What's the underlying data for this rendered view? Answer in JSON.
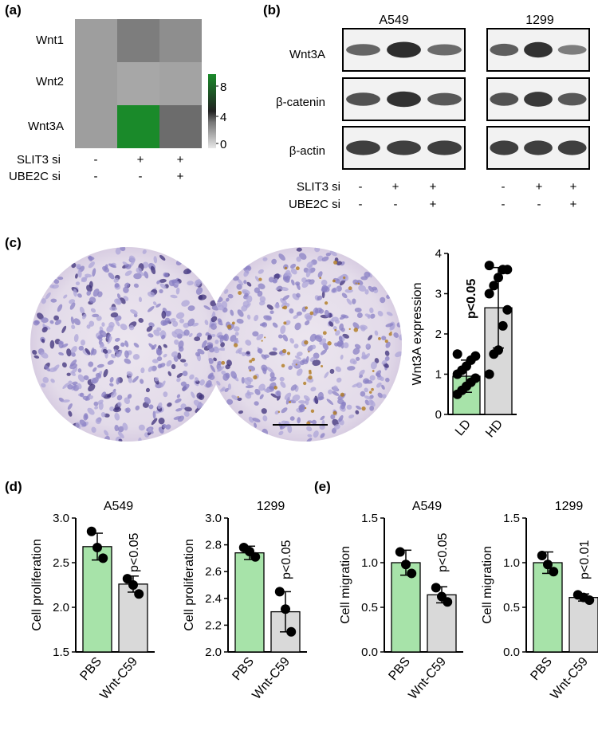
{
  "panel_labels": [
    "(a)",
    "(b)",
    "(c)",
    "(d)",
    "(e)"
  ],
  "colors": {
    "bar_green": "#a7e3a9",
    "bar_gray": "#d9d9d9",
    "heat_high": "#1a8a2a",
    "point": "#000000",
    "blot_band": "#222222"
  },
  "panel_a": {
    "rows": [
      "Wnt1",
      "Wnt2",
      "Wnt3A"
    ],
    "scale_ticks": [
      "8",
      "4",
      "0"
    ],
    "cond_rows": [
      {
        "label": "SLIT3 si",
        "signs": [
          "-",
          "+",
          "+"
        ]
      },
      {
        "label": "UBE2C si",
        "signs": [
          "-",
          "-",
          "+"
        ]
      }
    ]
  },
  "panel_b": {
    "cells": [
      "A549",
      "1299"
    ],
    "blots": [
      "Wnt3A",
      "β-catenin",
      "β-actin"
    ],
    "cond_rows": [
      {
        "label": "SLIT3 si",
        "signs": [
          "-",
          "+",
          "+",
          "-",
          "+",
          "+"
        ]
      },
      {
        "label": "UBE2C si",
        "signs": [
          "-",
          "-",
          "+",
          "-",
          "-",
          "+"
        ]
      }
    ]
  },
  "panel_c": {
    "ylabel": "Wnt3A expression",
    "pvalue": "p<0.05",
    "yticks": [
      "0",
      "1",
      "2",
      "3",
      "4"
    ]
  },
  "chart_data": [
    {
      "type": "heatmap",
      "panel": "a",
      "rows": [
        "Wnt1",
        "Wnt2",
        "Wnt3A"
      ],
      "columns": [
        "SLIT3 si - / UBE2C si -",
        "SLIT3 si + / UBE2C si -",
        "SLIT3 si + / UBE2C si +"
      ],
      "values": [
        [
          1,
          3,
          2
        ],
        [
          1,
          0.5,
          0.7
        ],
        [
          1,
          9,
          4
        ]
      ],
      "scale": [
        0,
        9
      ],
      "scale_ticks": [
        0,
        4,
        8
      ]
    },
    {
      "type": "bar",
      "panel": "c",
      "categories": [
        "LD",
        "HD"
      ],
      "values": [
        0.95,
        2.65
      ],
      "errors": [
        0.4,
        1.0
      ],
      "points": [
        [
          0.5,
          0.6,
          0.7,
          0.8,
          0.9,
          1.0,
          1.1,
          1.2,
          1.35,
          1.45,
          1.5
        ],
        [
          1.0,
          1.5,
          1.6,
          2.2,
          2.6,
          3.0,
          3.2,
          3.4,
          3.6,
          3.6,
          3.7
        ]
      ],
      "ylabel": "Wnt3A expression",
      "ylim": [
        0,
        4
      ],
      "annotation": "p<0.05"
    },
    {
      "type": "bar",
      "panel": "d",
      "title": "A549",
      "categories": [
        "PBS",
        "Wnt-C59"
      ],
      "values": [
        2.68,
        2.26
      ],
      "errors": [
        0.15,
        0.09
      ],
      "points": [
        [
          2.85,
          2.67,
          2.55
        ],
        [
          2.32,
          2.25,
          2.15
        ]
      ],
      "ylabel": "Cell proliferation",
      "ylim": [
        1.5,
        3.0
      ],
      "yticks": [
        "1.5",
        "2.0",
        "2.5",
        "3.0"
      ],
      "annotation": "p<0.05"
    },
    {
      "type": "bar",
      "panel": "d",
      "title": "1299",
      "categories": [
        "PBS",
        "Wnt-C59"
      ],
      "values": [
        2.74,
        2.3
      ],
      "errors": [
        0.05,
        0.15
      ],
      "points": [
        [
          2.78,
          2.75,
          2.71
        ],
        [
          2.45,
          2.32,
          2.15
        ]
      ],
      "ylabel": "Cell proliferation",
      "ylim": [
        2.0,
        3.0
      ],
      "yticks": [
        "2.0",
        "2.2",
        "2.4",
        "2.6",
        "2.8",
        "3.0"
      ],
      "annotation": "p<0.05"
    },
    {
      "type": "bar",
      "panel": "e",
      "title": "A549",
      "categories": [
        "PBS",
        "Wnt-C59"
      ],
      "values": [
        1.0,
        0.64
      ],
      "errors": [
        0.14,
        0.09
      ],
      "points": [
        [
          1.12,
          0.98,
          0.88
        ],
        [
          0.72,
          0.62,
          0.56
        ]
      ],
      "ylabel": "Cell migration",
      "ylim": [
        0.0,
        1.5
      ],
      "yticks": [
        "0.0",
        "0.5",
        "1.0",
        "1.5"
      ],
      "annotation": "p<0.05"
    },
    {
      "type": "bar",
      "panel": "e",
      "title": "1299",
      "categories": [
        "PBS",
        "Wnt-C59"
      ],
      "values": [
        1.0,
        0.61
      ],
      "errors": [
        0.12,
        0.04
      ],
      "points": [
        [
          1.08,
          0.98,
          0.9
        ],
        [
          0.64,
          0.61,
          0.58
        ]
      ],
      "ylabel": "Cell migration",
      "ylim": [
        0.0,
        1.5
      ],
      "yticks": [
        "0.0",
        "0.5",
        "1.0",
        "1.5"
      ],
      "annotation": "p<0.01"
    }
  ]
}
